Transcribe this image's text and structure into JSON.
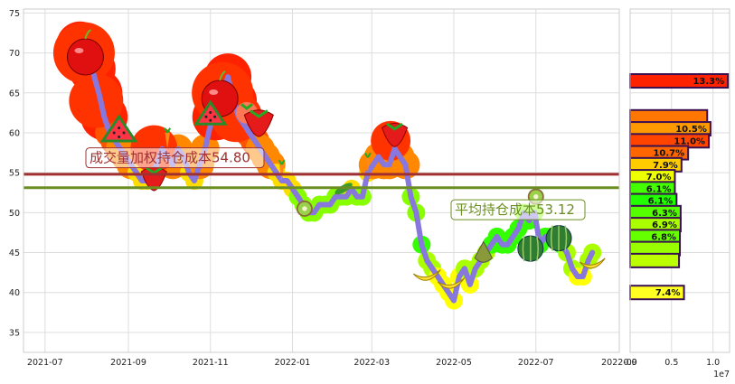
{
  "chart_data": [
    {
      "type": "line",
      "x_tick_labels": [
        "2021-07",
        "2021-09",
        "2021-11",
        "2022-01",
        "2022-03",
        "2022-05",
        "2022-07",
        "2022-09"
      ],
      "x_range": [
        "2021-06-15",
        "2022-09-01"
      ],
      "y_range": [
        32.5,
        75.5
      ],
      "y_ticks": [
        35,
        40,
        45,
        50,
        55,
        60,
        65,
        70,
        75
      ],
      "grid": true,
      "line_color": "#8877dd",
      "series": [
        {
          "x": [
            "2021-07-27",
            "2021-08-01",
            "2021-08-05",
            "2021-08-10",
            "2021-08-14",
            "2021-08-18",
            "2021-08-22",
            "2021-08-26",
            "2021-08-30",
            "2021-09-03",
            "2021-09-07",
            "2021-09-11",
            "2021-09-15",
            "2021-09-18",
            "2021-09-22",
            "2021-09-26",
            "2021-09-30",
            "2021-10-04",
            "2021-10-08",
            "2021-10-12",
            "2021-10-16",
            "2021-10-20",
            "2021-10-24",
            "2021-10-28",
            "2021-11-01",
            "2021-11-05",
            "2021-11-08",
            "2021-11-11",
            "2021-11-14",
            "2021-11-18",
            "2021-11-22",
            "2021-11-26",
            "2021-11-30",
            "2021-12-04",
            "2021-12-08",
            "2021-12-12",
            "2021-12-16",
            "2021-12-20",
            "2021-12-24",
            "2021-12-28",
            "2022-01-01",
            "2022-01-05",
            "2022-01-09",
            "2022-01-13",
            "2022-01-17",
            "2022-01-21",
            "2022-01-25",
            "2022-01-29",
            "2022-02-02",
            "2022-02-06",
            "2022-02-10",
            "2022-02-14",
            "2022-02-18",
            "2022-02-22",
            "2022-02-26",
            "2022-03-02",
            "2022-03-06",
            "2022-03-10",
            "2022-03-14",
            "2022-03-18",
            "2022-03-22",
            "2022-03-26",
            "2022-03-30",
            "2022-04-03",
            "2022-04-07",
            "2022-04-11",
            "2022-04-15",
            "2022-04-19",
            "2022-04-23",
            "2022-04-27",
            "2022-05-01",
            "2022-05-05",
            "2022-05-09",
            "2022-05-13",
            "2022-05-17",
            "2022-05-21",
            "2022-05-25",
            "2022-05-29",
            "2022-06-02",
            "2022-06-06",
            "2022-06-10",
            "2022-06-14",
            "2022-06-18",
            "2022-06-22",
            "2022-06-26",
            "2022-06-30",
            "2022-07-04",
            "2022-07-08",
            "2022-07-12",
            "2022-07-16",
            "2022-07-20",
            "2022-07-24",
            "2022-07-28",
            "2022-08-01",
            "2022-08-05",
            "2022-08-09",
            "2022-08-12"
          ],
          "y": [
            71,
            70,
            68,
            65,
            62,
            60,
            59,
            58,
            57,
            56,
            55,
            54,
            54,
            55,
            56,
            58,
            57,
            56,
            58,
            57,
            55,
            54,
            56,
            58,
            61,
            62,
            63,
            65,
            67,
            64,
            62,
            61,
            60,
            59,
            58,
            57,
            56,
            55,
            54,
            54,
            53,
            52,
            51,
            50,
            50,
            51,
            51,
            51,
            52,
            52,
            52,
            53,
            52,
            52,
            55,
            56,
            57,
            56,
            56,
            58,
            57,
            56,
            52,
            50,
            46,
            44,
            43,
            42,
            41,
            40,
            39,
            42,
            43,
            41,
            43,
            44,
            45,
            46,
            47,
            46,
            46,
            47,
            48,
            50,
            49,
            50,
            46,
            47,
            47,
            47,
            46,
            45,
            43,
            42,
            42,
            44,
            45
          ]
        }
      ],
      "reference_lines": [
        {
          "label": "成交量加权持仓成本54.80",
          "value": 54.8,
          "color": "#a03030"
        },
        {
          "label": "平均持仓成本53.12",
          "value": 53.12,
          "color": "#6b8e23"
        }
      ]
    },
    {
      "type": "bar",
      "orientation": "horizontal",
      "x_range": [
        0,
        12000000
      ],
      "x_tick_labels": [
        "0.0",
        "0.5",
        "1.0"
      ],
      "x_offset_label": "1e7",
      "categories_y": [
        66.5,
        62,
        60.5,
        59,
        57.5,
        56,
        54.5,
        53,
        51.5,
        50,
        48.5,
        47,
        45.5,
        44,
        40
      ],
      "values": [
        11800000,
        9300000,
        9700000,
        9500000,
        7000000,
        6200000,
        5400000,
        5400000,
        5600000,
        6100000,
        6100000,
        6000000,
        6000000,
        5900000,
        6500000
      ],
      "labels": [
        "13.3%",
        "",
        "10.5%",
        "11.0%",
        "10.7%",
        "7.9%",
        "7.0%",
        "6.1%",
        "6.1%",
        "6.3%",
        "6.9%",
        "6.8%",
        "",
        "",
        "7.4%"
      ],
      "colors": [
        "#ff2200",
        "#ff7700",
        "#ff9900",
        "#ff4400",
        "#ff6600",
        "#ffcc00",
        "#eeff00",
        "#44ff00",
        "#22ff00",
        "#55ff00",
        "#aaff00",
        "#66ff00",
        "#99ff00",
        "#bbff00",
        "#ffff22"
      ]
    }
  ]
}
